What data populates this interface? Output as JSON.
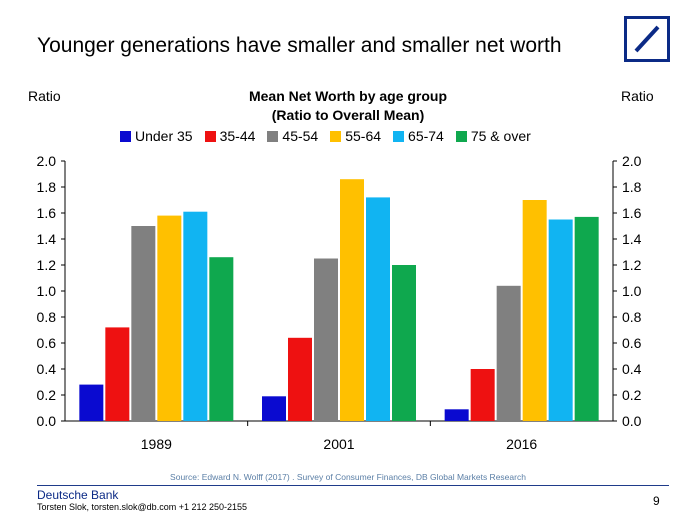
{
  "slide": {
    "title": "Younger generations have smaller and smaller net worth",
    "source": "Source: Edward N. Wolff (2017) . Survey of Consumer Finances, DB Global Markets Research",
    "footer_brand": "Deutsche Bank",
    "footer_contact": "Torsten Slok, torsten.slok@db.com  +1 212 250-2155",
    "page_number": "9",
    "logo_icon": "deutsche-bank-logo-icon",
    "brand_color": "#0b2a86"
  },
  "chart_data": {
    "type": "bar",
    "title": "Mean Net Worth by age group",
    "subtitle": "(Ratio to Overall Mean)",
    "ylabel_left": "Ratio",
    "ylabel_right": "Ratio",
    "categories": [
      "1989",
      "2001",
      "2016"
    ],
    "ylim": [
      0,
      2.0
    ],
    "yticks": [
      "0.0",
      "0.2",
      "0.4",
      "0.6",
      "0.8",
      "1.0",
      "1.2",
      "1.4",
      "1.6",
      "1.8",
      "2.0"
    ],
    "grid": false,
    "legend_position": "top",
    "series": [
      {
        "name": "Under 35",
        "color": "#0a0ad0",
        "values": [
          0.28,
          0.19,
          0.09
        ]
      },
      {
        "name": "35-44",
        "color": "#ee1111",
        "values": [
          0.72,
          0.64,
          0.4
        ]
      },
      {
        "name": "45-54",
        "color": "#808080",
        "values": [
          1.5,
          1.25,
          1.04
        ]
      },
      {
        "name": "55-64",
        "color": "#ffc000",
        "values": [
          1.58,
          1.86,
          1.7
        ]
      },
      {
        "name": "65-74",
        "color": "#11b4f2",
        "values": [
          1.61,
          1.72,
          1.55
        ]
      },
      {
        "name": "75 & over",
        "color": "#0fa84e",
        "values": [
          1.26,
          1.2,
          1.57
        ]
      }
    ]
  }
}
